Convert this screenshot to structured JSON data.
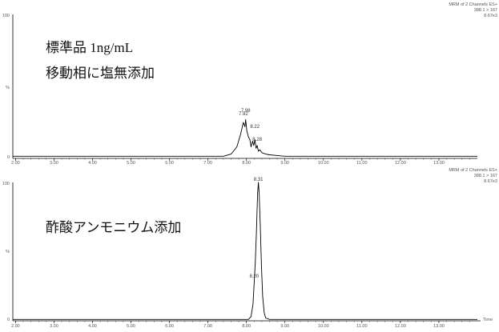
{
  "chart_data": [
    {
      "type": "line",
      "header": [
        "MRM of 2 Channels ES+",
        "388.1 > 167",
        "8.67e3"
      ],
      "annotation": [
        "標準品 1ng/mL",
        "移動相に塩無添加"
      ],
      "ylabel": "%",
      "y_ticks": [
        "100",
        "0"
      ],
      "x_ticks": [
        "2.00",
        "3.00",
        "4.00",
        "5.00",
        "6.00",
        "7.00",
        "8.00",
        "9.00",
        "10.00",
        "11.00",
        "12.00",
        "13.00"
      ],
      "xlim": [
        1.93,
        14.0
      ],
      "ylim": [
        0,
        100
      ],
      "x_axis_title": "",
      "peak_labels": [
        {
          "x": 7.92,
          "y": 29,
          "text": "7.92"
        },
        {
          "x": 7.98,
          "y": 31,
          "text": "7.98"
        },
        {
          "x": 8.22,
          "y": 20,
          "text": "8.22"
        },
        {
          "x": 8.28,
          "y": 11,
          "text": "8.28"
        }
      ],
      "series": [
        {
          "x": [
            1.93,
            7.4,
            7.6,
            7.75,
            7.85,
            7.92,
            7.96,
            7.98,
            8.01,
            8.05,
            8.09,
            8.12,
            8.16,
            8.19,
            8.22,
            8.25,
            8.28,
            8.31,
            8.35,
            8.4,
            8.5,
            8.6,
            8.8,
            9.0,
            14.0
          ],
          "values": [
            1.5,
            1.5,
            3,
            8,
            17,
            25,
            22,
            27,
            19,
            15,
            13,
            8,
            12,
            9,
            13,
            7,
            9,
            5,
            6,
            4,
            3,
            2.5,
            2,
            1.5,
            1.5
          ]
        }
      ]
    },
    {
      "type": "line",
      "header": [
        "MRM of 2 Channels ES+",
        "388.1 > 167",
        "8.67e3"
      ],
      "annotation": [
        "酢酸アンモニウム添加"
      ],
      "ylabel": "%",
      "y_ticks": [
        "100",
        "0"
      ],
      "x_ticks": [
        "2.00",
        "3.00",
        "4.00",
        "5.00",
        "6.00",
        "7.00",
        "8.00",
        "9.00",
        "10.00",
        "11.00",
        "12.00",
        "13.00"
      ],
      "xlim": [
        1.93,
        14.0
      ],
      "ylim": [
        0,
        100
      ],
      "x_axis_title": "Time",
      "peak_labels": [
        {
          "x": 8.31,
          "y": 100,
          "text": "8.31"
        },
        {
          "x": 8.2,
          "y": 30,
          "text": "8.20"
        }
      ],
      "series": [
        {
          "x": [
            1.93,
            8.05,
            8.12,
            8.17,
            8.2,
            8.23,
            8.26,
            8.29,
            8.31,
            8.33,
            8.36,
            8.39,
            8.42,
            8.46,
            8.5,
            8.6,
            14.0
          ],
          "values": [
            1,
            1,
            3,
            12,
            27,
            42,
            65,
            92,
            100,
            93,
            68,
            40,
            18,
            6,
            2,
            1,
            1
          ]
        }
      ]
    }
  ]
}
